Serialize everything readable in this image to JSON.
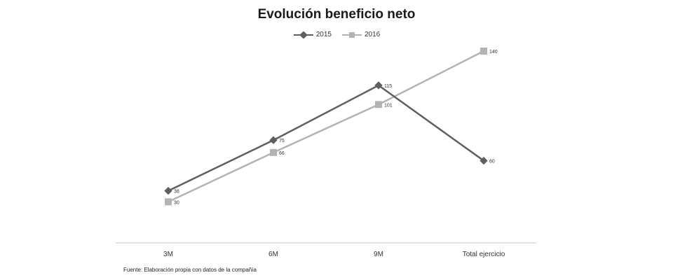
{
  "chart_data": {
    "type": "line",
    "title": "Evolución beneficio neto",
    "categories": [
      "3M",
      "6M",
      "9M",
      "Total ejercicio"
    ],
    "series": [
      {
        "name": "2015",
        "values": [
          38,
          75,
          115,
          60
        ],
        "color": "#5f5f5f",
        "marker": "diamond"
      },
      {
        "name": "2016",
        "values": [
          30,
          66,
          101,
          140
        ],
        "color": "#b3b3b3",
        "marker": "square"
      }
    ],
    "xlabel": "",
    "ylabel": "",
    "ylim": [
      0,
      140
    ],
    "grid": false,
    "y_axis_visible": false,
    "legend_position": "top",
    "data_labels": true
  },
  "footer": {
    "source": "Fuente: Elaboración propia con datos de la compañía"
  }
}
